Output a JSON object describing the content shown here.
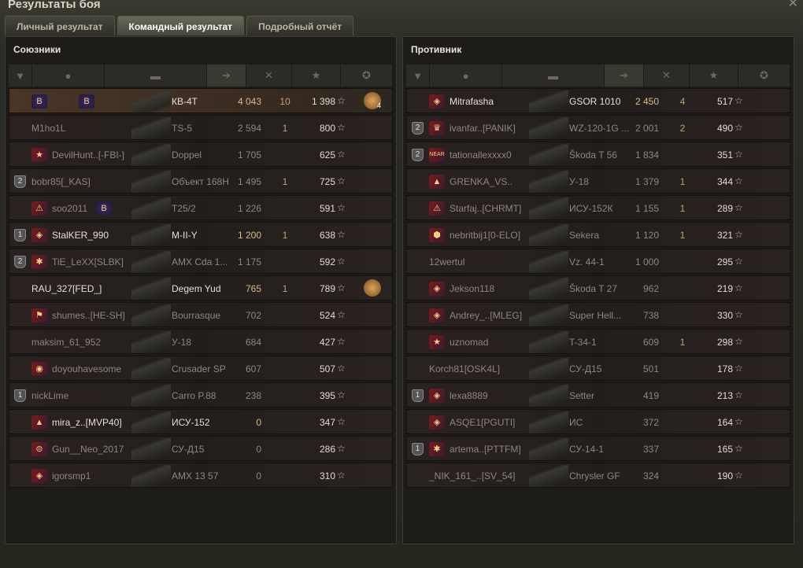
{
  "window": {
    "title": "Результаты боя",
    "close": "✕"
  },
  "tabs": [
    {
      "label": "Личный результат"
    },
    {
      "label": "Командный результат",
      "active": true
    },
    {
      "label": "Подробный отчёт"
    }
  ],
  "columns": {
    "platoon": "platoon-icon",
    "player": "player-icon",
    "tank": "tank-icon",
    "damage": "damage-icon",
    "kills": "kills-icon",
    "xp": "★",
    "medal": "medal-icon",
    "sorted_by": "damage"
  },
  "allies": {
    "title": "Союзники",
    "rows": [
      {
        "badge": "B",
        "badge2": "B",
        "name": "",
        "tank": "КВ-4Т",
        "damage": "4 043",
        "kills": "10",
        "xp": "1 398",
        "medal": "4",
        "self": true,
        "bright": true
      },
      {
        "name": "M1ho1L",
        "tank": "TS-5",
        "damage": "2 594",
        "kills": "1",
        "xp": "800"
      },
      {
        "badge": "★",
        "name": "DevilHunt..[-FBI-]",
        "tank": "Doppel",
        "damage": "1 705",
        "xp": "625"
      },
      {
        "platoon": "2",
        "name": "bobr85[_KAS]",
        "tank": "Объект 168Н",
        "damage": "1 495",
        "kills": "1",
        "xp": "725"
      },
      {
        "badge": "⚠",
        "badge2": "B",
        "name": "soo2011",
        "tank": "T25/2",
        "damage": "1 226",
        "xp": "591"
      },
      {
        "platoon": "1",
        "badge": "◈",
        "name": "StalKER_990",
        "tank": "M-II-Y",
        "damage": "1 200",
        "kills": "1",
        "xp": "638",
        "bright": true
      },
      {
        "platoon": "2",
        "badge": "✱",
        "name": "TiE_LeXX[SLBK]",
        "tank": "AMX Cda 1...",
        "damage": "1 175",
        "xp": "592"
      },
      {
        "name": "RAU_327[FED_]",
        "tank": "Degem Yud",
        "damage": "765",
        "kills": "1",
        "xp": "789",
        "medal": "",
        "bright": true
      },
      {
        "badge": "⚑",
        "name": "shumes..[HE-SH]",
        "tank": "Bourrasque",
        "damage": "702",
        "xp": "524"
      },
      {
        "name": "maksim_61_952",
        "tank": "У-18",
        "damage": "684",
        "xp": "427"
      },
      {
        "badge": "◉",
        "name": "doyouhavesome",
        "tank": "Crusader SP",
        "damage": "607",
        "xp": "507"
      },
      {
        "platoon": "1",
        "name": "nickLime",
        "tank": "Carro P.88",
        "damage": "238",
        "xp": "395"
      },
      {
        "badge": "▲",
        "name": "mira_z..[MVP40]",
        "tank": "ИСУ-152",
        "damage": "0",
        "xp": "347",
        "bright": true
      },
      {
        "badge": "⊜",
        "name": "Gun__Neo_2017",
        "tank": "СУ-Д15",
        "damage": "0",
        "xp": "286"
      },
      {
        "badge": "◈",
        "name": "igorsmp1",
        "tank": "AMX 13 57",
        "damage": "0",
        "xp": "310"
      }
    ]
  },
  "enemies": {
    "title": "Противник",
    "rows": [
      {
        "badge": "◈",
        "name": "Mitrafasha",
        "tank": "GSOR 1010",
        "damage": "2 450",
        "kills": "4",
        "xp": "517",
        "bright": true
      },
      {
        "platoon": "2",
        "badge": "♛",
        "name": "ivanfar..[PANIK]",
        "tank": "WZ-120-1G ...",
        "damage": "2 001",
        "kills": "2",
        "xp": "490"
      },
      {
        "platoon": "2",
        "badge": "NEAR",
        "name": "tationallexxxx0",
        "tank": "Škoda T 56",
        "damage": "1 834",
        "xp": "351"
      },
      {
        "badge": "▲",
        "name": "GRENKA_VS..",
        "tank": "У-18",
        "damage": "1 379",
        "kills": "1",
        "xp": "344"
      },
      {
        "badge": "⚠",
        "name": "Starfaj..[CHRMT]",
        "tank": "ИСУ-152К",
        "damage": "1 155",
        "kills": "1",
        "xp": "289"
      },
      {
        "badge": "⬢",
        "name": "nebritbij1[0-ELO]",
        "tank": "Sekera",
        "damage": "1 120",
        "kills": "1",
        "xp": "321"
      },
      {
        "name": "12wertul",
        "tank": "Vz. 44-1",
        "damage": "1 000",
        "xp": "295"
      },
      {
        "badge": "◈",
        "name": "Jekson118",
        "tank": "Škoda T 27",
        "damage": "962",
        "xp": "219"
      },
      {
        "badge": "◈",
        "name": "Andrey_..[MLEG]",
        "tank": "Super Hell...",
        "damage": "738",
        "xp": "330"
      },
      {
        "badge": "★",
        "name": "uznomad",
        "tank": "T-34-1",
        "damage": "609",
        "kills": "1",
        "xp": "298"
      },
      {
        "name": "Korch81[OSK4L]",
        "tank": "СУ-Д15",
        "damage": "501",
        "xp": "178"
      },
      {
        "platoon": "1",
        "badge": "◈",
        "name": "lexa8889",
        "tank": "Setter",
        "damage": "419",
        "xp": "213"
      },
      {
        "badge": "◈",
        "name": "ASQE1[PGUTI]",
        "tank": "ИС",
        "damage": "372",
        "xp": "164"
      },
      {
        "platoon": "1",
        "badge": "✱",
        "name": "artema..[PTTFM]",
        "tank": "СУ-14-1",
        "damage": "337",
        "xp": "165"
      },
      {
        "name": "_NIK_161_..[SV_54]",
        "tank": "Chrysler GF",
        "damage": "324",
        "xp": "190"
      }
    ]
  }
}
